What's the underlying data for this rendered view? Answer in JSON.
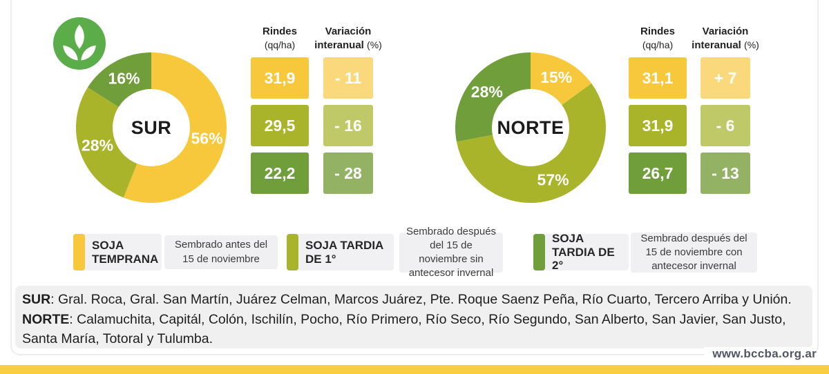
{
  "palette": {
    "series": [
      "#F7C83B",
      "#A9B42A",
      "#6F9E3A"
    ],
    "series_light": [
      "#FAD97C",
      "#BFC968",
      "#94B264"
    ],
    "logo_green": "#5BAD49",
    "bottom_bar": "#F9CE45"
  },
  "icons": {
    "logo": "plant-sprout-icon"
  },
  "table_headers": {
    "col1_line1": "Rindes",
    "col1_line2": "(qq/ha)",
    "col2_line1": "Variación",
    "col2_line2_bold": "interanual",
    "col2_line2_normal": "(%)"
  },
  "chart_data": [
    {
      "type": "pie",
      "donut": true,
      "title": "SUR",
      "categories": [
        "SOJA TEMPRANA",
        "SOJA TARDIA DE 1°",
        "SOJA TARDIA DE 2°"
      ],
      "values": [
        56,
        28,
        16
      ],
      "value_labels": [
        "56%",
        "28%",
        "16%"
      ],
      "table": {
        "rindes_qq_ha": [
          31.9,
          29.5,
          22.2
        ],
        "rindes_display": [
          "31,9",
          "29,5",
          "22,2"
        ],
        "variacion_interanual_pct": [
          -11,
          -16,
          -28
        ],
        "variacion_display": [
          "- 11",
          "- 16",
          "- 28"
        ]
      }
    },
    {
      "type": "pie",
      "donut": true,
      "title": "NORTE",
      "categories": [
        "SOJA TEMPRANA",
        "SOJA TARDIA DE 1°",
        "SOJA TARDIA DE 2°"
      ],
      "values": [
        15,
        57,
        28
      ],
      "value_labels": [
        "15%",
        "57%",
        "28%"
      ],
      "table": {
        "rindes_qq_ha": [
          31.1,
          31.9,
          26.7
        ],
        "rindes_display": [
          "31,1",
          "31,9",
          "26,7"
        ],
        "variacion_interanual_pct": [
          7,
          -6,
          -13
        ],
        "variacion_display": [
          "+ 7",
          "- 6",
          "- 13"
        ]
      }
    }
  ],
  "legend": [
    {
      "title": "SOJA TEMPRANA",
      "color": "#F7C83B",
      "desc": "Sembrado antes del 15 de noviembre"
    },
    {
      "title": "SOJA TARDIA DE 1°",
      "color": "#A9B42A",
      "desc": "Sembrado después del 15 de noviembre sin antecesor invernal"
    },
    {
      "title": "SOJA TARDIA DE 2°",
      "color": "#6F9E3A",
      "desc": "Sembrado después del 15 de noviembre con antecesor invernal"
    }
  ],
  "footnote": {
    "sur_label": "SUR",
    "sur_text": ": Gral. Roca, Gral. San Martín, Juárez Celman, Marcos Juárez, Pte. Roque Saenz Peña, Río Cuarto, Tercero Arriba y Unión.",
    "norte_label": "NORTE",
    "norte_text": ": Calamuchita, Capitál, Colón, Ischilín, Pocho, Río Primero, Río Seco, Río Segundo, San Alberto, San Javier, San Justo, Santa María, Totoral y Tulumba."
  },
  "footer": {
    "website": "www.bccba.org.ar"
  }
}
